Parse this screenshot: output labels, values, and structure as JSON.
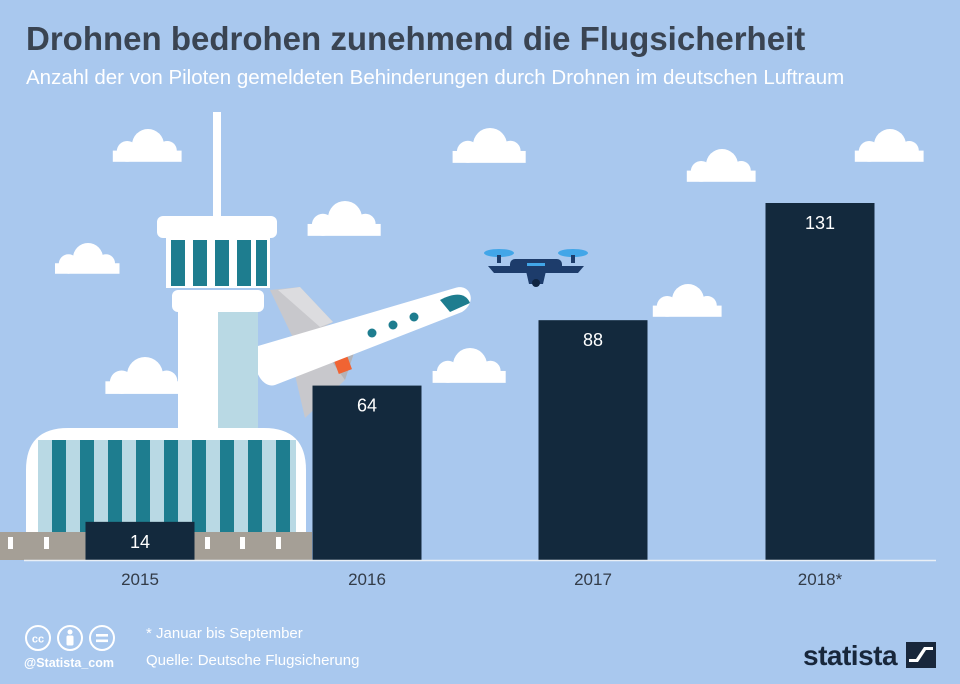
{
  "header": {
    "title": "Drohnen bedrohen zunehmend die Flugsicherheit",
    "subtitle": "Anzahl der von Piloten gemeldeten Behinderungen durch Drohnen im deutschen Luftraum"
  },
  "chart_data": {
    "type": "bar",
    "title": "Drohnen bedrohen zunehmend die Flugsicherheit",
    "subtitle": "Anzahl der von Piloten gemeldeten Behinderungen durch Drohnen im deutschen Luftraum",
    "categories": [
      "2015",
      "2016",
      "2017",
      "2018*"
    ],
    "values": [
      14,
      64,
      88,
      131
    ],
    "xlabel": "",
    "ylabel": "",
    "ylim": [
      0,
      131
    ],
    "grid": false,
    "data_labels": true
  },
  "footer": {
    "note": "* Januar bis September",
    "source": "Quelle: Deutsche Flugsicherung",
    "handle": "@Statista_com",
    "brand": "statista"
  },
  "colors": {
    "background": "#a9c8ee",
    "bar": "#13293d",
    "title": "#3a4452",
    "text_light": "#ffffff",
    "brand": "#18273b",
    "axis": "#e9eff6"
  }
}
